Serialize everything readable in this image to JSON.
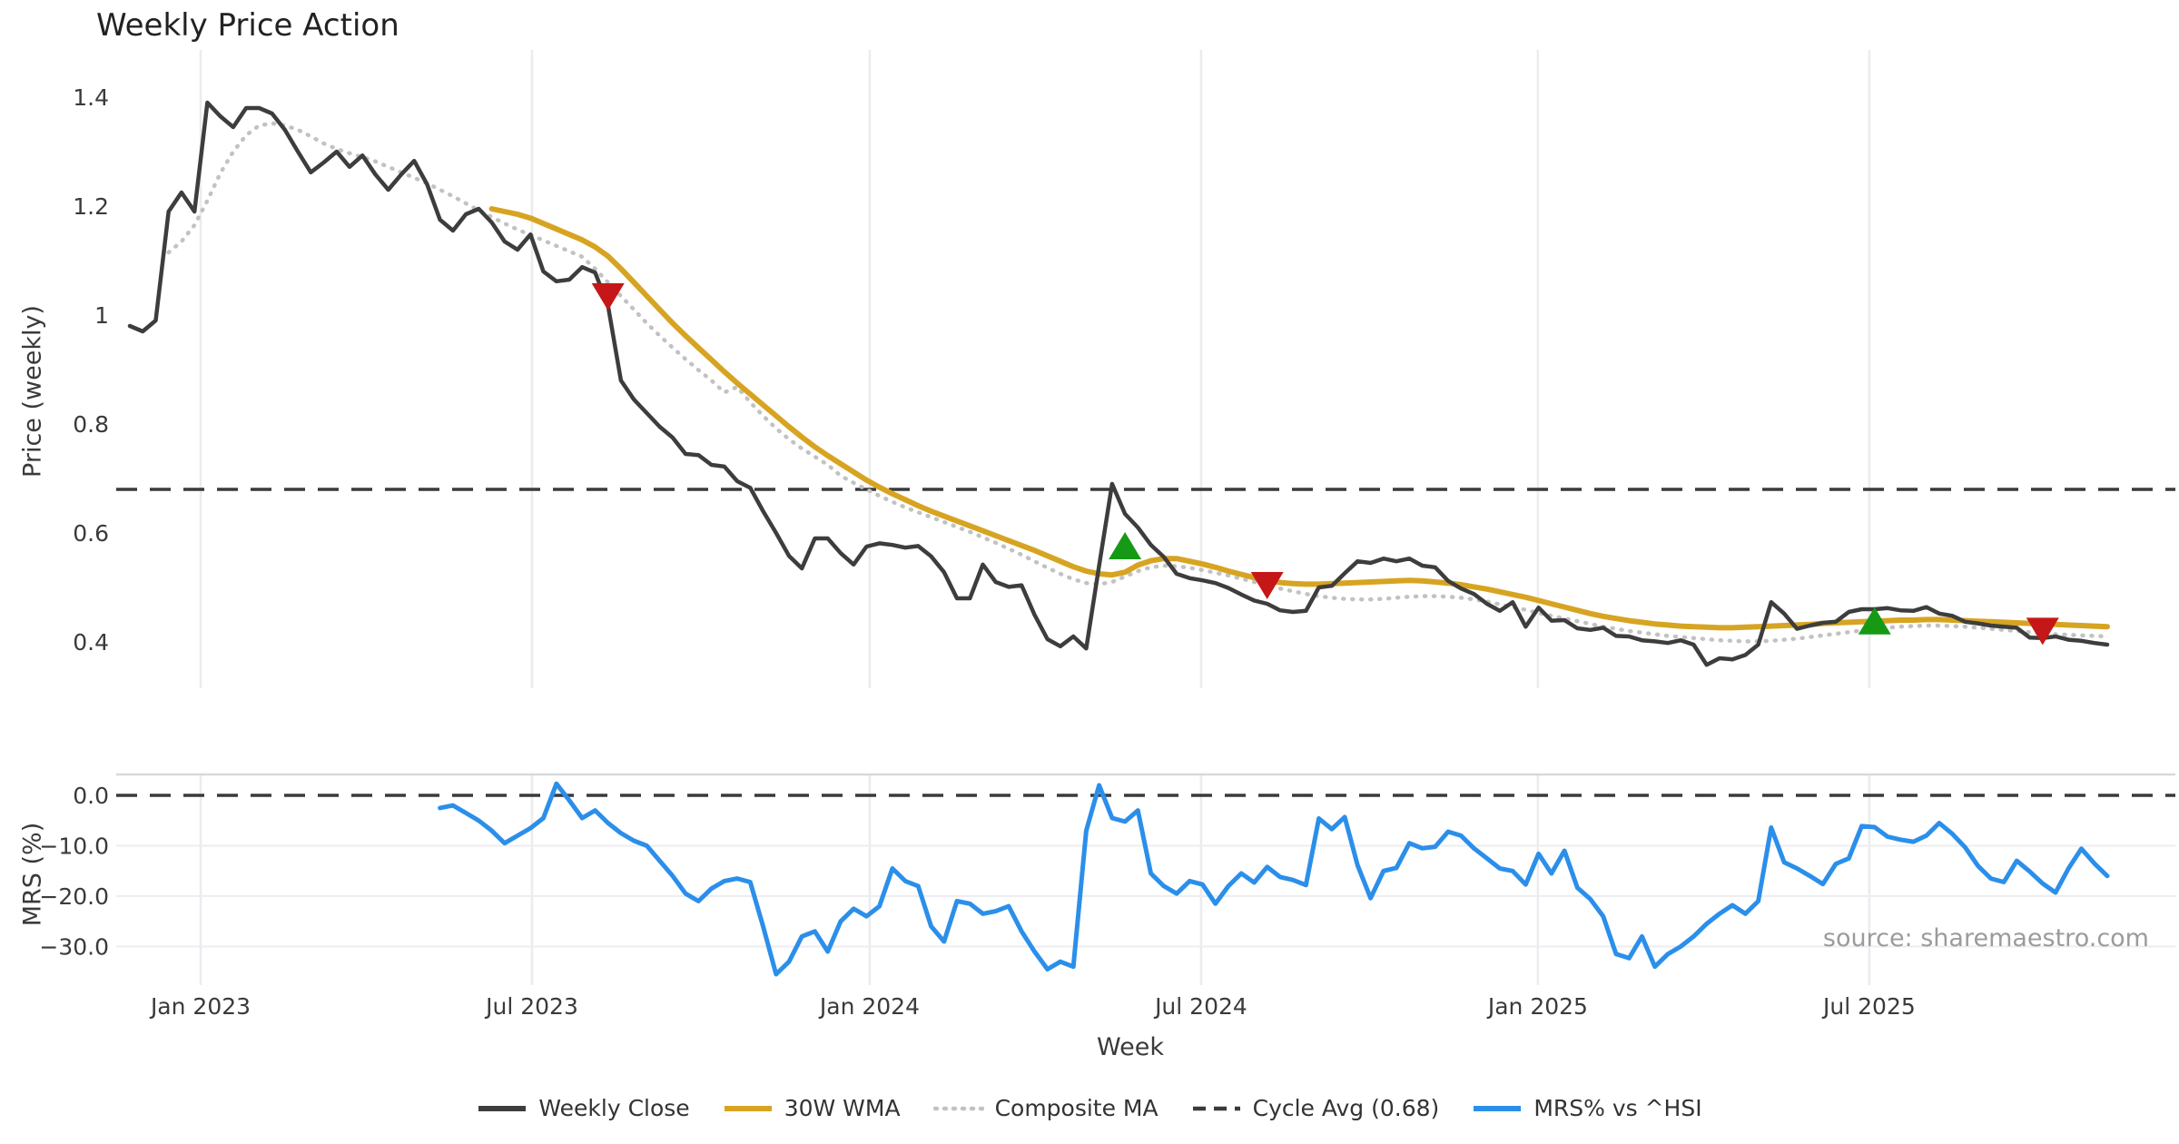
{
  "chart_data": {
    "type": "line",
    "title": "Weekly Price Action",
    "xlabel": "Week",
    "source_note": "source: sharemaestro.com",
    "legend_position": "bottom-center",
    "grid": "vertical-both-panels, horizontal-bottom-panel",
    "panels": [
      {
        "ylabel": "Price (weekly)",
        "yticks": [
          {
            "label": "1.4",
            "value": 1.4
          },
          {
            "label": "1.2",
            "value": 1.2
          },
          {
            "label": "1",
            "value": 1.0
          },
          {
            "label": "0.8",
            "value": 0.8
          },
          {
            "label": "0.6",
            "value": 0.6
          },
          {
            "label": "0.4",
            "value": 0.4
          }
        ],
        "ylim": [
          0.32,
          1.48
        ]
      },
      {
        "ylabel": "MRS (%)",
        "yticks": [
          {
            "label": "0.0",
            "value": 0
          },
          {
            "label": "−10.0",
            "value": -10
          },
          {
            "label": "−20.0",
            "value": -20
          },
          {
            "label": "−30.0",
            "value": -30
          }
        ],
        "ylim": [
          -38,
          4
        ]
      }
    ],
    "xticks": [
      {
        "label": "Jan 2023",
        "week": 5.48
      },
      {
        "label": "Jul 2023",
        "week": 31.12
      },
      {
        "label": "Jan 2024",
        "week": 57.25
      },
      {
        "label": "Jul 2024",
        "week": 82.89
      },
      {
        "label": "Jan 2025",
        "week": 108.95
      },
      {
        "label": "Jul 2025",
        "week": 134.59
      }
    ],
    "colors": {
      "close": "#3d3d3d",
      "wma": "#d7a422",
      "composite": "#c2c2c2",
      "cycle": "#3a3a3a",
      "mrs": "#2b8fea",
      "buy": "#169a16",
      "sell": "#c51717",
      "vgrid": "#ebebf0",
      "hgrid": "#ededf2",
      "spine": "#d8d8dc"
    },
    "series": [
      {
        "name": "Weekly Close",
        "key": "close",
        "style": "solid",
        "panel": 1,
        "start_week": 0,
        "values": [
          0.98,
          0.97,
          0.99,
          1.19,
          1.225,
          1.19,
          1.39,
          1.365,
          1.345,
          1.38,
          1.38,
          1.37,
          1.34,
          1.3,
          1.262,
          1.28,
          1.3,
          1.272,
          1.293,
          1.258,
          1.23,
          1.258,
          1.283,
          1.24,
          1.175,
          1.155,
          1.185,
          1.195,
          1.17,
          1.135,
          1.12,
          1.148,
          1.08,
          1.062,
          1.065,
          1.088,
          1.078,
          1.017,
          0.88,
          0.845,
          0.82,
          0.795,
          0.775,
          0.745,
          0.743,
          0.725,
          0.722,
          0.695,
          0.683,
          0.64,
          0.6,
          0.558,
          0.535,
          0.59,
          0.59,
          0.563,
          0.542,
          0.575,
          0.581,
          0.578,
          0.573,
          0.576,
          0.557,
          0.528,
          0.48,
          0.48,
          0.542,
          0.51,
          0.501,
          0.504,
          0.45,
          0.405,
          0.392,
          0.41,
          0.388,
          0.54,
          0.69,
          0.635,
          0.61,
          0.578,
          0.556,
          0.525,
          0.517,
          0.513,
          0.508,
          0.499,
          0.487,
          0.476,
          0.47,
          0.458,
          0.455,
          0.457,
          0.5,
          0.503,
          0.526,
          0.548,
          0.545,
          0.553,
          0.548,
          0.553,
          0.54,
          0.537,
          0.512,
          0.498,
          0.488,
          0.47,
          0.457,
          0.473,
          0.428,
          0.463,
          0.439,
          0.44,
          0.425,
          0.422,
          0.426,
          0.411,
          0.41,
          0.403,
          0.401,
          0.398,
          0.403,
          0.395,
          0.358,
          0.37,
          0.368,
          0.376,
          0.395,
          0.473,
          0.452,
          0.424,
          0.43,
          0.435,
          0.437,
          0.455,
          0.46,
          0.46,
          0.462,
          0.458,
          0.457,
          0.464,
          0.452,
          0.448,
          0.437,
          0.434,
          0.43,
          0.428,
          0.426,
          0.408,
          0.407,
          0.41,
          0.404,
          0.402,
          0.398,
          0.395
        ]
      },
      {
        "name": "30W WMA",
        "key": "wma",
        "style": "solid",
        "panel": 1,
        "start_week": 28,
        "values": [
          1.195,
          1.19,
          1.185,
          1.178,
          1.168,
          1.158,
          1.148,
          1.138,
          1.125,
          1.108,
          1.085,
          1.06,
          1.035,
          1.01,
          0.985,
          0.962,
          0.94,
          0.918,
          0.896,
          0.875,
          0.855,
          0.835,
          0.815,
          0.795,
          0.776,
          0.758,
          0.742,
          0.727,
          0.712,
          0.697,
          0.684,
          0.672,
          0.661,
          0.65,
          0.64,
          0.631,
          0.622,
          0.613,
          0.604,
          0.595,
          0.586,
          0.577,
          0.568,
          0.558,
          0.548,
          0.538,
          0.53,
          0.525,
          0.523,
          0.528,
          0.541,
          0.549,
          0.553,
          0.553,
          0.548,
          0.543,
          0.537,
          0.53,
          0.524,
          0.518,
          0.513,
          0.509,
          0.507,
          0.506,
          0.506,
          0.507,
          0.508,
          0.509,
          0.51,
          0.511,
          0.512,
          0.513,
          0.512,
          0.51,
          0.508,
          0.505,
          0.501,
          0.497,
          0.492,
          0.487,
          0.482,
          0.476,
          0.47,
          0.464,
          0.458,
          0.452,
          0.447,
          0.443,
          0.439,
          0.436,
          0.433,
          0.431,
          0.429,
          0.428,
          0.427,
          0.426,
          0.426,
          0.427,
          0.428,
          0.429,
          0.43,
          0.431,
          0.432,
          0.434,
          0.435,
          0.436,
          0.437,
          0.438,
          0.439,
          0.44,
          0.44,
          0.441,
          0.441,
          0.44,
          0.439,
          0.438,
          0.437,
          0.436,
          0.435,
          0.434,
          0.433,
          0.432,
          0.431,
          0.43,
          0.429,
          0.428
        ]
      },
      {
        "name": "Composite MA",
        "key": "composite",
        "style": "dotted",
        "panel": 1,
        "start_week": 3,
        "values": [
          1.115,
          1.135,
          1.165,
          1.21,
          1.26,
          1.3,
          1.33,
          1.348,
          1.352,
          1.348,
          1.34,
          1.328,
          1.315,
          1.305,
          1.297,
          1.29,
          1.282,
          1.272,
          1.262,
          1.252,
          1.242,
          1.23,
          1.218,
          1.205,
          1.192,
          1.18,
          1.168,
          1.157,
          1.147,
          1.137,
          1.127,
          1.117,
          1.107,
          1.085,
          1.06,
          1.035,
          1.01,
          0.985,
          0.962,
          0.94,
          0.919,
          0.899,
          0.88,
          0.858,
          0.868,
          0.84,
          0.815,
          0.792,
          0.772,
          0.755,
          0.74,
          0.725,
          0.705,
          0.692,
          0.68,
          0.668,
          0.657,
          0.647,
          0.638,
          0.629,
          0.62,
          0.611,
          0.602,
          0.592,
          0.582,
          0.571,
          0.56,
          0.548,
          0.536,
          0.525,
          0.515,
          0.508,
          0.506,
          0.51,
          0.52,
          0.53,
          0.537,
          0.54,
          0.539,
          0.536,
          0.532,
          0.527,
          0.522,
          0.516,
          0.51,
          0.504,
          0.498,
          0.493,
          0.488,
          0.484,
          0.481,
          0.479,
          0.478,
          0.478,
          0.479,
          0.481,
          0.483,
          0.484,
          0.484,
          0.483,
          0.481,
          0.478,
          0.474,
          0.469,
          0.464,
          0.459,
          0.453,
          0.448,
          0.443,
          0.438,
          0.433,
          0.428,
          0.424,
          0.42,
          0.417,
          0.414,
          0.411,
          0.409,
          0.407,
          0.405,
          0.403,
          0.402,
          0.401,
          0.401,
          0.402,
          0.404,
          0.406,
          0.409,
          0.412,
          0.415,
          0.418,
          0.421,
          0.424,
          0.426,
          0.428,
          0.429,
          0.43,
          0.43,
          0.429,
          0.428,
          0.426,
          0.424,
          0.422,
          0.42,
          0.418,
          0.416,
          0.414,
          0.413,
          0.412,
          0.411,
          0.41
        ]
      },
      {
        "name": "Cycle Avg (0.68)",
        "key": "cycle",
        "style": "dashed",
        "panel": 1,
        "constant": 0.68
      },
      {
        "name": "MRS% vs ^HSI",
        "key": "mrs",
        "style": "solid",
        "panel": 2,
        "start_week": 24,
        "values": [
          -2.5,
          -2.0,
          -3.5,
          -5.0,
          -7.0,
          -9.5,
          -8.0,
          -6.5,
          -4.5,
          2.3,
          -1.0,
          -4.5,
          -3.0,
          -5.5,
          -7.5,
          -9.0,
          -10.0,
          -13.0,
          -16.0,
          -19.5,
          -21.0,
          -18.5,
          -17.0,
          -16.5,
          -17.2,
          -26.0,
          -35.5,
          -33.0,
          -28.0,
          -27.0,
          -31.0,
          -25.0,
          -22.5,
          -24.0,
          -22.0,
          -14.5,
          -17.0,
          -18.0,
          -26.0,
          -29.0,
          -21.0,
          -21.5,
          -23.5,
          -23.0,
          -22.0,
          -27.0,
          -31.0,
          -34.5,
          -33.0,
          -34.0,
          -7.0,
          2.0,
          -4.5,
          -5.2,
          -3.0,
          -15.5,
          -18.0,
          -19.5,
          -17.0,
          -17.7,
          -21.5,
          -18.0,
          -15.5,
          -17.3,
          -14.2,
          -16.2,
          -16.8,
          -17.8,
          -4.6,
          -6.7,
          -4.3,
          -13.9,
          -20.4,
          -15.0,
          -14.4,
          -9.5,
          -10.5,
          -10.2,
          -7.2,
          -8.0,
          -10.5,
          -12.5,
          -14.5,
          -15.0,
          -17.7,
          -11.6,
          -15.5,
          -11.0,
          -18.3,
          -20.6,
          -24.0,
          -31.5,
          -32.3,
          -28.0,
          -34.0,
          -31.5,
          -30.0,
          -28.0,
          -25.5,
          -23.5,
          -21.8,
          -23.5,
          -21.0,
          -6.4,
          -13.3,
          -14.5,
          -16.0,
          -17.6,
          -13.6,
          -12.5,
          -6.1,
          -6.3,
          -8.2,
          -8.8,
          -9.2,
          -8.0,
          -5.5,
          -7.6,
          -10.3,
          -14.0,
          -16.5,
          -17.2,
          -13.0,
          -15.1,
          -17.5,
          -19.3,
          -14.5,
          -10.6,
          -13.5,
          -16.0
        ]
      }
    ],
    "markers": [
      {
        "week": 37,
        "value": 1.035,
        "type": "sell"
      },
      {
        "week": 77,
        "value": 0.575,
        "type": "buy"
      },
      {
        "week": 88,
        "value": 0.505,
        "type": "sell"
      },
      {
        "week": 135,
        "value": 0.437,
        "type": "buy"
      },
      {
        "week": 148,
        "value": 0.421,
        "type": "sell"
      }
    ]
  }
}
